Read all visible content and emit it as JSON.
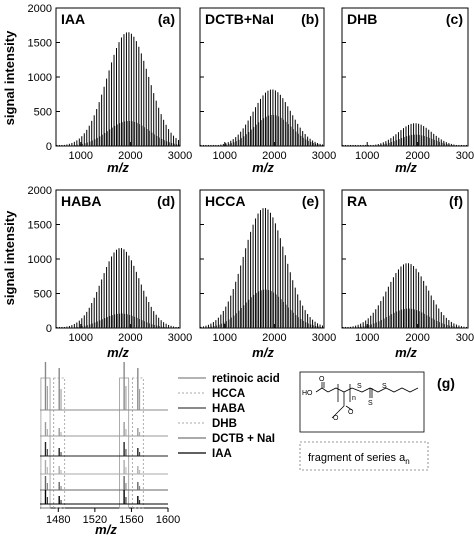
{
  "figure": {
    "ylabel": "signal intensity",
    "xlabel": "m/z"
  },
  "chart_data": [
    {
      "id": "a",
      "type": "bar",
      "matrix": "IAA",
      "letter": "(a)",
      "xlim": [
        500,
        3000
      ],
      "ylim": [
        0,
        2000
      ],
      "xticks": [
        "1000",
        "2000",
        "3000"
      ],
      "yticks": [
        "0",
        "500",
        "1000",
        "1500",
        "2000"
      ],
      "peak_center": 1950,
      "peak_max": 1650,
      "peak_width": 420,
      "secondary_ratio": 0.22
    },
    {
      "id": "b",
      "type": "bar",
      "matrix": "DCTB+NaI",
      "letter": "(b)",
      "xlim": [
        500,
        3000
      ],
      "ylim": [
        0,
        2000
      ],
      "xticks": [
        "1000",
        "2000",
        "3000"
      ],
      "yticks": [],
      "peak_center": 1950,
      "peak_max": 820,
      "peak_width": 380,
      "secondary_ratio": 0.55
    },
    {
      "id": "c",
      "type": "bar",
      "matrix": "DHB",
      "letter": "(c)",
      "xlim": [
        500,
        3000
      ],
      "ylim": [
        0,
        2000
      ],
      "xticks": [
        "1000",
        "2000",
        "3000"
      ],
      "yticks": [],
      "peak_center": 1950,
      "peak_max": 330,
      "peak_width": 330,
      "secondary_ratio": 0.5
    },
    {
      "id": "d",
      "type": "bar",
      "matrix": "HABA",
      "letter": "(d)",
      "xlim": [
        500,
        3000
      ],
      "ylim": [
        0,
        2000
      ],
      "xticks": [
        "1000",
        "2000",
        "3000"
      ],
      "yticks": [
        "0",
        "500",
        "1000",
        "1500",
        "2000"
      ],
      "peak_center": 1800,
      "peak_max": 1160,
      "peak_width": 380,
      "secondary_ratio": 0.18
    },
    {
      "id": "e",
      "type": "bar",
      "matrix": "HCCA",
      "letter": "(e)",
      "xlim": [
        500,
        3000
      ],
      "ylim": [
        0,
        2000
      ],
      "xticks": [
        "1000",
        "2000",
        "3000"
      ],
      "yticks": [],
      "peak_center": 1800,
      "peak_max": 1740,
      "peak_width": 420,
      "secondary_ratio": 0.32
    },
    {
      "id": "f",
      "type": "bar",
      "matrix": "RA",
      "letter": "(f)",
      "xlim": [
        500,
        3000
      ],
      "ylim": [
        0,
        2000
      ],
      "xticks": [
        "1000",
        "2000",
        "3000"
      ],
      "yticks": [],
      "peak_center": 1800,
      "peak_max": 940,
      "peak_width": 400,
      "secondary_ratio": 0.3
    },
    {
      "id": "g",
      "type": "line",
      "letter": "(g)",
      "xlim": [
        1460,
        1600
      ],
      "xticks": [
        "1480",
        "1520",
        "1560",
        "1600"
      ],
      "xlabel": "m/z",
      "legend": [
        "retinoic acid",
        "HCCA",
        "HABA",
        "DHB",
        "DCTB + NaI",
        "IAA"
      ],
      "structure_label": "fragment of series a",
      "structure_subscript": "n"
    }
  ]
}
